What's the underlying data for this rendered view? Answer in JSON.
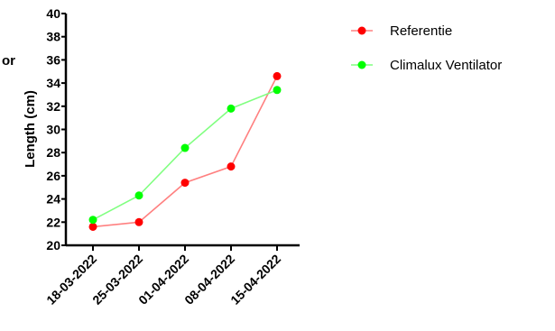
{
  "chart_data": {
    "type": "line",
    "title": "",
    "xlabel": "",
    "ylabel": "Length (cm)",
    "categories": [
      "18-03-2022",
      "25-03-2022",
      "01-04-2022",
      "08-04-2022",
      "15-04-2022"
    ],
    "ylim": [
      20,
      40
    ],
    "yticks": [
      20,
      22,
      24,
      26,
      28,
      30,
      32,
      34,
      36,
      38,
      40
    ],
    "grid": false,
    "legend_position": "top-right",
    "series": [
      {
        "name": "Referentie",
        "color": "#ff0000",
        "line_color": "#ff8080",
        "values": [
          21.6,
          22.0,
          25.4,
          26.8,
          34.6
        ]
      },
      {
        "name": "Climalux Ventilator",
        "color": "#00ff00",
        "line_color": "#80ff80",
        "values": [
          22.2,
          24.3,
          28.4,
          31.8,
          33.4
        ]
      }
    ]
  },
  "clipped_text": "or"
}
